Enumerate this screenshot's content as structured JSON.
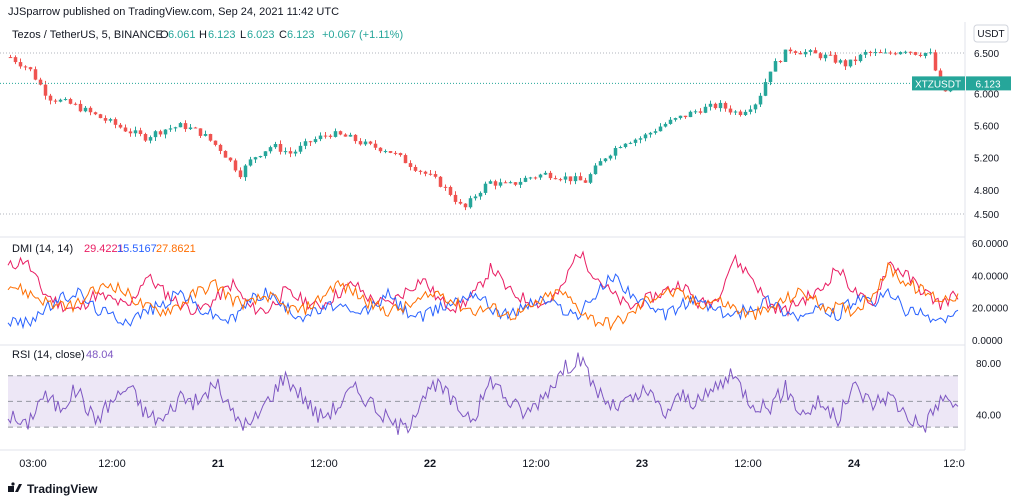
{
  "header": {
    "published": "JJSparrow published on TradingView.com, Sep 24, 2021 11:42 UTC",
    "symbol": "Tezos / TetherUS, 5, BINANCE",
    "open_label": "O",
    "open": "6.061",
    "high_label": "H",
    "high": "6.123",
    "low_label": "L",
    "low": "6.023",
    "close_label": "C",
    "close": "6.123",
    "change": "+0.067 (+1.11%)"
  },
  "currency": "USDT",
  "price_tag": {
    "symbol": "XTZUSDT",
    "value": "6.123"
  },
  "dmi_legend": {
    "title": "DMI (14, 14)",
    "v1": "29.4221",
    "v2": "15.5167",
    "v3": "27.8621"
  },
  "rsi_legend": {
    "title": "RSI (14, close)",
    "value": "48.04"
  },
  "footer": {
    "brand": "TradingView"
  },
  "colors": {
    "up": "#26a69a",
    "down": "#ef5350",
    "adx": "#e91e63",
    "plus_di": "#2962ff",
    "minus_di": "#ff6d00",
    "rsi": "#7e57c2",
    "rsi_band": "#ede7f6",
    "tag": "#26a69a"
  },
  "chart_data": [
    {
      "type": "candlestick",
      "symbol": "XTZUSDT",
      "x_tick_labels": [
        "03:00",
        "12:00",
        "21",
        "12:00",
        "22",
        "12:00",
        "23",
        "12:00",
        "24",
        "12:0"
      ],
      "y_tick_labels": [
        "6.500",
        "6.000",
        "5.600",
        "5.200",
        "4.800",
        "4.500"
      ],
      "ylim": [
        4.45,
        6.6
      ],
      "close_path": [
        [
          0,
          6.45
        ],
        [
          3,
          6.3
        ],
        [
          6,
          5.95
        ],
        [
          10,
          5.85
        ],
        [
          14,
          5.7
        ],
        [
          18,
          5.55
        ],
        [
          21,
          5.45
        ],
        [
          24,
          5.55
        ],
        [
          27,
          5.6
        ],
        [
          30,
          5.5
        ],
        [
          33,
          5.3
        ],
        [
          36,
          5.0
        ],
        [
          38,
          5.2
        ],
        [
          41,
          5.35
        ],
        [
          44,
          5.25
        ],
        [
          47,
          5.4
        ],
        [
          50,
          5.5
        ],
        [
          53,
          5.45
        ],
        [
          56,
          5.35
        ],
        [
          59,
          5.3
        ],
        [
          62,
          5.15
        ],
        [
          65,
          5.0
        ],
        [
          67,
          4.9
        ],
        [
          69,
          4.75
        ],
        [
          71,
          4.55
        ],
        [
          73,
          4.75
        ],
        [
          75,
          4.9
        ],
        [
          78,
          4.85
        ],
        [
          81,
          4.95
        ],
        [
          84,
          5.0
        ],
        [
          87,
          4.95
        ],
        [
          90,
          4.9
        ],
        [
          93,
          5.2
        ],
        [
          96,
          5.4
        ],
        [
          99,
          5.45
        ],
        [
          102,
          5.6
        ],
        [
          105,
          5.7
        ],
        [
          108,
          5.8
        ],
        [
          111,
          5.85
        ],
        [
          114,
          5.75
        ],
        [
          117,
          5.9
        ],
        [
          119,
          6.3
        ],
        [
          122,
          6.55
        ],
        [
          125,
          6.5
        ],
        [
          128,
          6.45
        ],
        [
          131,
          6.35
        ],
        [
          134,
          6.5
        ],
        [
          137,
          6.48
        ],
        [
          140,
          6.55
        ],
        [
          142,
          6.5
        ],
        [
          144,
          6.5
        ],
        [
          146,
          6.0
        ],
        [
          148,
          6.12
        ]
      ]
    },
    {
      "type": "line",
      "name": "DMI (14, 14)",
      "y_tick_labels": [
        "60.0000",
        "40.0000",
        "20.0000",
        "0.0000"
      ],
      "ylim": [
        0,
        60
      ],
      "series": [
        {
          "name": "29.4221",
          "values": [
            45,
            50,
            30,
            22,
            18,
            28,
            25,
            20,
            40,
            30,
            22,
            18,
            25,
            35,
            20,
            18,
            30,
            25,
            20,
            28,
            35,
            25,
            22,
            30,
            38,
            24,
            20,
            28,
            45,
            30,
            25,
            22,
            30,
            55,
            40,
            28,
            20,
            25,
            30,
            35,
            22,
            25,
            50,
            40,
            22,
            18,
            25,
            30,
            45,
            30,
            20,
            48,
            40,
            30,
            22,
            29
          ]
        },
        {
          "name": "15.5167",
          "values": [
            12,
            10,
            18,
            25,
            30,
            20,
            15,
            12,
            18,
            22,
            30,
            20,
            15,
            12,
            25,
            30,
            20,
            15,
            18,
            22,
            15,
            20,
            28,
            18,
            14,
            20,
            25,
            30,
            20,
            15,
            22,
            25,
            20,
            15,
            28,
            40,
            30,
            20,
            15,
            22,
            25,
            18,
            15,
            20,
            25,
            18,
            14,
            20,
            15,
            25,
            22,
            30,
            18,
            15,
            12,
            16
          ]
        },
        {
          "name": "27.8621",
          "values": [
            35,
            30,
            25,
            20,
            22,
            30,
            35,
            28,
            20,
            18,
            22,
            30,
            35,
            25,
            22,
            28,
            20,
            18,
            25,
            35,
            30,
            22,
            18,
            20,
            25,
            30,
            22,
            18,
            20,
            15,
            18,
            25,
            30,
            20,
            12,
            10,
            15,
            25,
            30,
            28,
            22,
            25,
            20,
            15,
            18,
            25,
            30,
            22,
            20,
            18,
            28,
            45,
            35,
            30,
            25,
            28
          ]
        }
      ]
    },
    {
      "type": "line",
      "name": "RSI (14, close)",
      "y_tick_labels": [
        "80.00",
        "40.00"
      ],
      "ylim": [
        20,
        90
      ],
      "bands": [
        70,
        50,
        30
      ],
      "series": [
        {
          "name": "48.04",
          "values": [
            40,
            30,
            55,
            45,
            60,
            35,
            50,
            62,
            40,
            35,
            55,
            48,
            65,
            40,
            30,
            50,
            70,
            55,
            38,
            45,
            60,
            50,
            35,
            28,
            55,
            62,
            45,
            38,
            68,
            50,
            40,
            55,
            72,
            85,
            60,
            45,
            50,
            58,
            40,
            55,
            48,
            62,
            70,
            50,
            45,
            60,
            40,
            50,
            35,
            62,
            48,
            55,
            40,
            30,
            52,
            48
          ]
        }
      ]
    }
  ]
}
